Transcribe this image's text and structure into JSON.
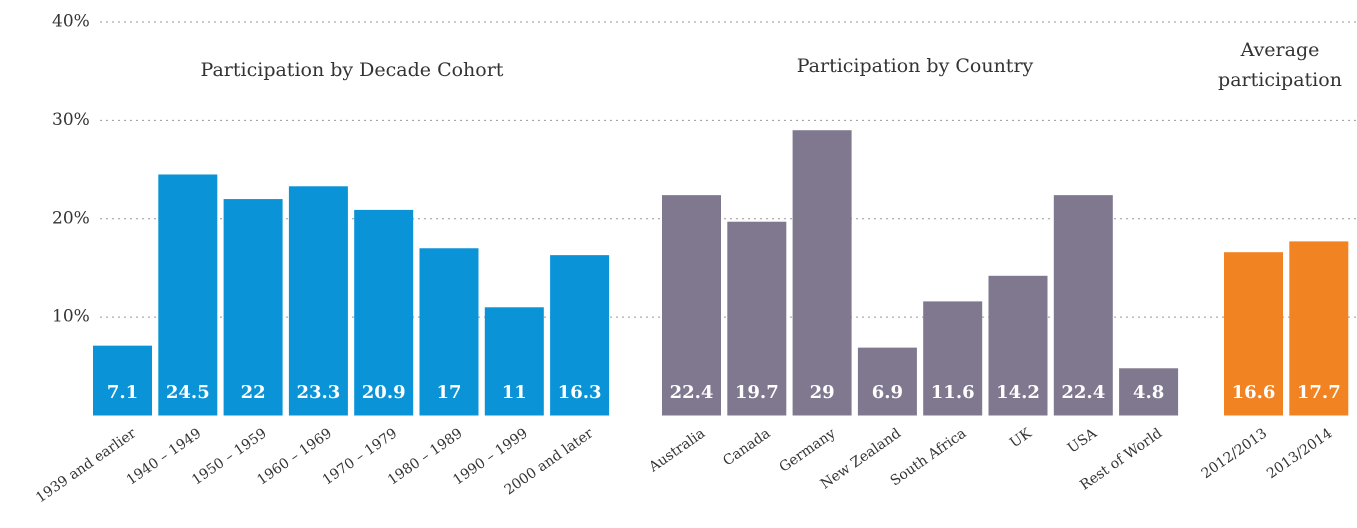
{
  "chart_data": {
    "type": "bar",
    "ylim": [
      0,
      40
    ],
    "yticks": [
      {
        "value": 10,
        "label": "10%"
      },
      {
        "value": 20,
        "label": "20%"
      },
      {
        "value": 30,
        "label": "30%"
      },
      {
        "value": 40,
        "label": "40%"
      }
    ],
    "grid": true,
    "panels": [
      {
        "title": "Participation by Decade Cohort",
        "color": "#0a93d6",
        "categories": [
          "1939 and earlier",
          "1940 – 1949",
          "1950 – 1959",
          "1960 – 1969",
          "1970 – 1979",
          "1980 – 1989",
          "1990 – 1999",
          "2000 and later"
        ],
        "values": [
          7.1,
          24.5,
          22,
          23.3,
          20.9,
          17,
          11,
          16.3
        ]
      },
      {
        "title": "Participation by Country",
        "color": "#80788f",
        "categories": [
          "Australia",
          "Canada",
          "Germany",
          "New Zealand",
          "South Africa",
          "UK",
          "USA",
          "Rest of World"
        ],
        "values": [
          22.4,
          19.7,
          29,
          6.9,
          11.6,
          14.2,
          22.4,
          4.8
        ]
      },
      {
        "title": "Average participation",
        "color": "#f28322",
        "categories": [
          "2012/2013",
          "2013/2014"
        ],
        "values": [
          16.6,
          17.7
        ]
      }
    ]
  }
}
